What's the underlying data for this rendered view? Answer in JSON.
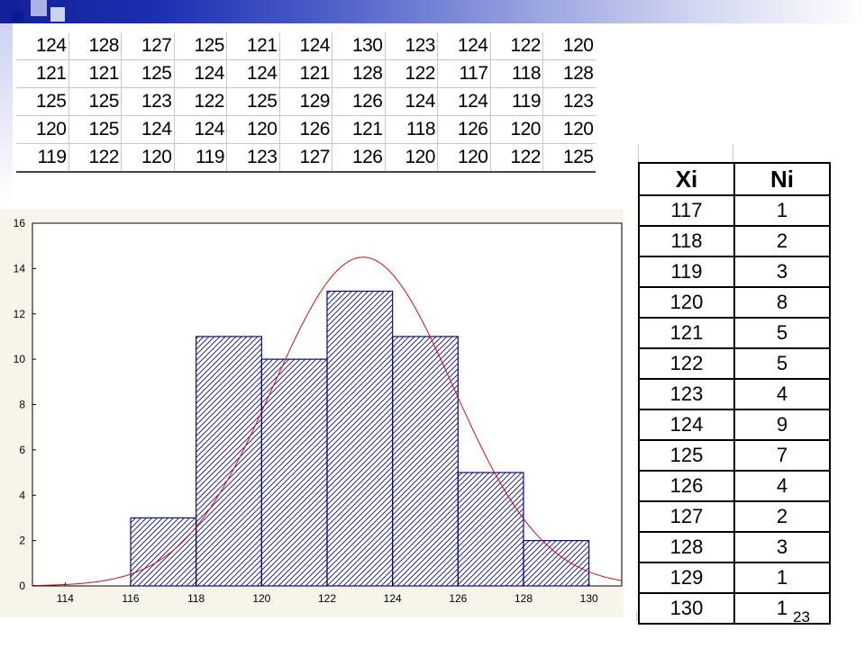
{
  "raw_data": {
    "rows": [
      [
        "124",
        "128",
        "127",
        "125",
        "121",
        "124",
        "130",
        "123",
        "124",
        "122",
        "120"
      ],
      [
        "121",
        "121",
        "125",
        "124",
        "124",
        "121",
        "128",
        "122",
        "117",
        "118",
        "128"
      ],
      [
        "125",
        "125",
        "123",
        "122",
        "125",
        "129",
        "126",
        "124",
        "124",
        "119",
        "123"
      ],
      [
        "120",
        "125",
        "124",
        "124",
        "120",
        "126",
        "121",
        "118",
        "126",
        "120",
        "120"
      ],
      [
        "119",
        "122",
        "120",
        "119",
        "123",
        "127",
        "126",
        "120",
        "120",
        "122",
        "125"
      ]
    ]
  },
  "frequency_table": {
    "headers": [
      "Xi",
      "Ni"
    ],
    "rows": [
      [
        "117",
        "1"
      ],
      [
        "118",
        "2"
      ],
      [
        "119",
        "3"
      ],
      [
        "120",
        "8"
      ],
      [
        "121",
        "5"
      ],
      [
        "122",
        "5"
      ],
      [
        "123",
        "4"
      ],
      [
        "124",
        "9"
      ],
      [
        "125",
        "7"
      ],
      [
        "126",
        "4"
      ],
      [
        "127",
        "2"
      ],
      [
        "128",
        "3"
      ],
      [
        "129",
        "1"
      ],
      [
        "130",
        "1"
      ]
    ]
  },
  "page_number": "23",
  "colors": {
    "bars": "#0c0c7a",
    "curve": "#cc1111",
    "panel": "#f7f5ea",
    "header_gradient": "#12209a"
  },
  "chart_data": {
    "type": "bar",
    "title": "",
    "xlabel": "",
    "ylabel": "",
    "xlim": [
      113,
      131
    ],
    "ylim": [
      0,
      16
    ],
    "xticks": [
      114,
      116,
      118,
      120,
      122,
      124,
      126,
      128,
      130
    ],
    "yticks": [
      0,
      2,
      4,
      6,
      8,
      10,
      12,
      14,
      16
    ],
    "bins": [
      [
        116,
        118
      ],
      [
        118,
        120
      ],
      [
        120,
        122
      ],
      [
        122,
        124
      ],
      [
        124,
        126
      ],
      [
        126,
        128
      ],
      [
        128,
        130
      ]
    ],
    "values": [
      3,
      11,
      10,
      13,
      11,
      5,
      2
    ],
    "normal_curve": {
      "mean": 123.1,
      "sd": 2.75,
      "peak": 14.5
    },
    "grid": false,
    "legend": "none"
  }
}
